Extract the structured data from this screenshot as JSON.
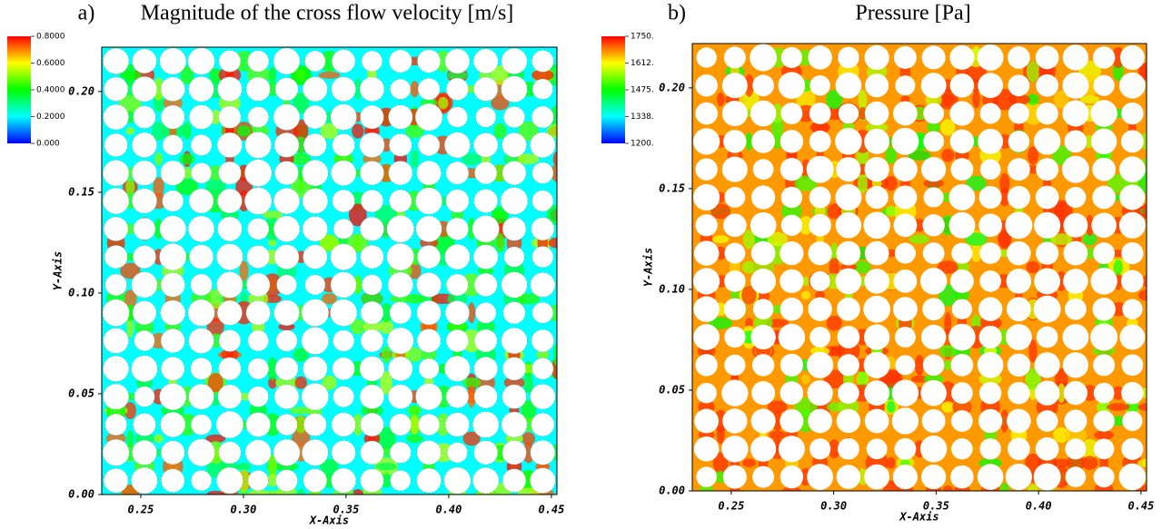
{
  "chart_data": [
    {
      "type": "contour",
      "label": "a)",
      "title": "Magnitude of the cross flow velocity [m/s]",
      "x_label": "X-Axis",
      "y_label": "Y-Axis",
      "xlim": [
        0.231,
        0.4527
      ],
      "ylim": [
        0,
        0.222
      ],
      "xticks": [
        0.25,
        {
          "value": 0.3,
          "label": "0.30"
        },
        0.35,
        {
          "value": 0.4,
          "label": "0.40"
        },
        0.45
      ],
      "yticks": [
        {
          "value": 0,
          "label": "0.00"
        },
        0.05,
        {
          "value": 0.1,
          "label": "0.10"
        },
        0.15,
        {
          "value": 0.2,
          "label": "0.20"
        }
      ],
      "colorbar": {
        "clim": [
          0,
          0.8
        ],
        "ticks": [
          {
            "value": 0.8,
            "label": "0.8000"
          },
          {
            "value": 0.6,
            "label": "0.6000"
          },
          {
            "value": 0.4,
            "label": "0.4000"
          },
          {
            "value": 0.2,
            "label": "0.2000"
          },
          {
            "value": 0,
            "label": "0.000"
          }
        ],
        "colors": [
          "#0000ff",
          "#00ffff",
          "#00ff00",
          "#ffff00",
          "#ff0000"
        ]
      }
    },
    {
      "type": "contour",
      "label": "b)",
      "title": "Pressure [Pa]",
      "x_label": "X-Axis",
      "y_label": "Y-Axis",
      "xlim": [
        0.231,
        0.4527
      ],
      "ylim": [
        0,
        0.222
      ],
      "xticks": [
        0.25,
        {
          "value": 0.3,
          "label": "0.30"
        },
        0.35,
        {
          "value": 0.4,
          "label": "0.40"
        },
        0.45
      ],
      "yticks": [
        {
          "value": 0,
          "label": "0.00"
        },
        0.05,
        {
          "value": 0.1,
          "label": "0.10"
        },
        0.15,
        {
          "value": 0.2,
          "label": "0.20"
        }
      ],
      "colorbar": {
        "clim": [
          1200,
          1750
        ],
        "ticks": [
          {
            "value": 1750,
            "label": "1750."
          },
          {
            "value": 1612,
            "label": "1612."
          },
          {
            "value": 1475,
            "label": "1475."
          },
          {
            "value": 1338,
            "label": "1338."
          },
          {
            "value": 1200,
            "label": "1200."
          }
        ],
        "colors": [
          "#0000ff",
          "#00ffff",
          "#00ff00",
          "#ffff00",
          "#ff0000"
        ]
      }
    }
  ]
}
